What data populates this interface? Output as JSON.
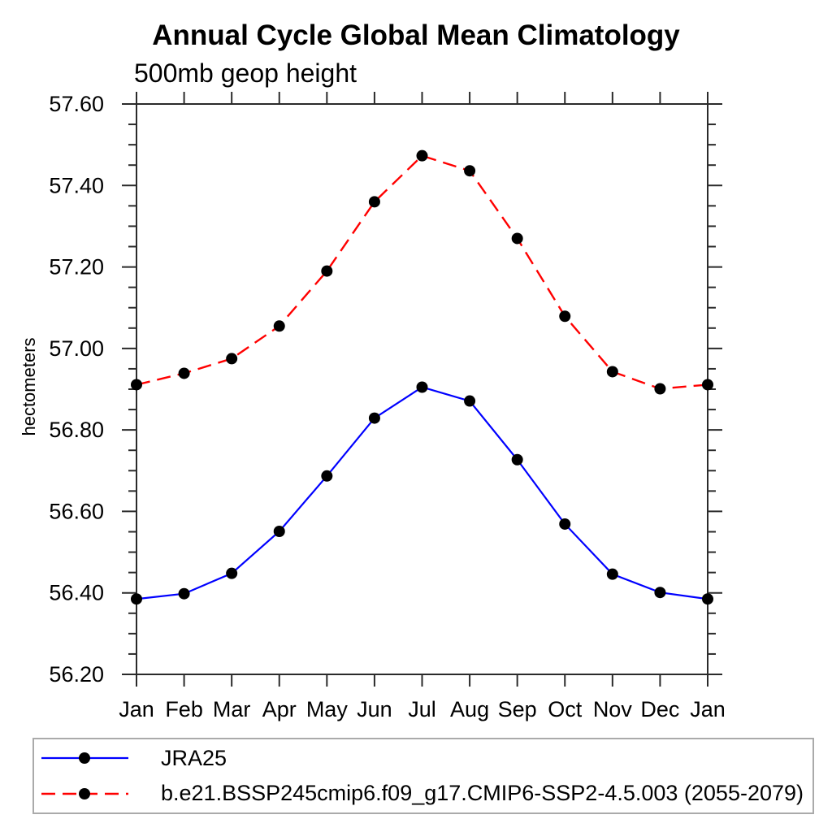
{
  "chart_data": {
    "type": "line",
    "title": "Annual Cycle Global Mean Climatology",
    "subtitle": "500mb geop height",
    "ylabel": "hectometers",
    "x_categories": [
      "Jan",
      "Feb",
      "Mar",
      "Apr",
      "May",
      "Jun",
      "Jul",
      "Aug",
      "Sep",
      "Oct",
      "Nov",
      "Dec",
      "Jan"
    ],
    "ylim": [
      56.2,
      57.6
    ],
    "y_major_step": 0.2,
    "y_minor_step": 0.05,
    "y_ticks": [
      {
        "label": "56.20",
        "value": 56.2
      },
      {
        "label": "56.40",
        "value": 56.4
      },
      {
        "label": "56.60",
        "value": 56.6
      },
      {
        "label": "56.80",
        "value": 56.8
      },
      {
        "label": "57.00",
        "value": 57.0
      },
      {
        "label": "57.20",
        "value": 57.2
      },
      {
        "label": "57.40",
        "value": 57.4
      },
      {
        "label": "57.60",
        "value": 57.6
      }
    ],
    "grid": false,
    "legend_position": "bottom-left",
    "series": [
      {
        "name": "JRA25",
        "color": "#0000ff",
        "line_style": "solid",
        "marker": "filled-circle",
        "marker_color": "#000000",
        "values": [
          56.385,
          56.398,
          56.448,
          56.551,
          56.687,
          56.829,
          56.905,
          56.871,
          56.727,
          56.569,
          56.446,
          56.401,
          56.385
        ]
      },
      {
        "name": "b.e21.BSSP245cmip6.f09_g17.CMIP6-SSP2-4.5.003 (2055-2079)",
        "color": "#ff0000",
        "line_style": "dashed",
        "marker": "filled-circle",
        "marker_color": "#000000",
        "values": [
          56.911,
          56.939,
          56.975,
          57.055,
          57.19,
          57.36,
          57.473,
          57.436,
          57.27,
          57.079,
          56.943,
          56.901,
          56.911
        ]
      }
    ]
  },
  "colors": {
    "axis": "#2a2a2a",
    "text": "#000000",
    "legend_border": "#aaaaaa",
    "background": "#ffffff"
  }
}
